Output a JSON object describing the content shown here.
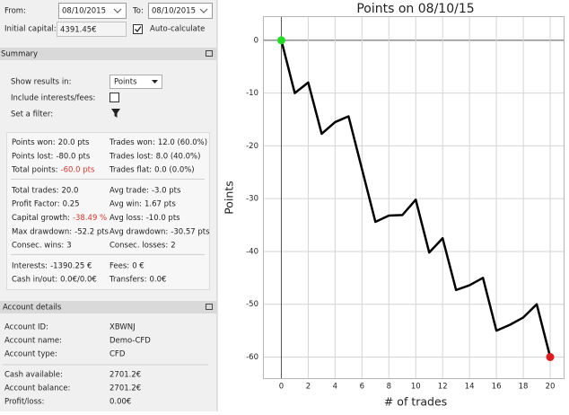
{
  "header": {
    "from_label": "From:",
    "from_date": "08/10/2015",
    "to_label": "To:",
    "to_date": "08/10/2015",
    "capital_label": "Initial capital:",
    "capital_value": "4391.45€",
    "auto_calculate": "Auto-calculate"
  },
  "summary": {
    "title": "Summary",
    "show_results_label": "Show results in:",
    "show_results_value": "Points",
    "include_fees_label": "Include interests/fees:",
    "filter_label": "Set a filter:",
    "groups": [
      [
        {
          "left": {
            "label": "Points won:",
            "value": "20.0 pts"
          },
          "right": {
            "label": "Trades won:",
            "value": "12.0 (60.0%)"
          }
        },
        {
          "left": {
            "label": "Points lost:",
            "value": "-80.0 pts"
          },
          "right": {
            "label": "Trades lost:",
            "value": "8.0 (40.0%)"
          }
        },
        {
          "left": {
            "label": "Total points:",
            "value": "-60.0 pts",
            "value_color": "#d9342b"
          },
          "right": {
            "label": "Trades flat:",
            "value": "0.0 (0.0%)"
          }
        }
      ],
      [
        {
          "left": {
            "label": "Total trades:",
            "value": "20.0"
          },
          "right": {
            "label": "Avg trade:",
            "value": "-3.0 pts"
          }
        },
        {
          "left": {
            "label": "Profit Factor:",
            "value": "0.25"
          },
          "right": {
            "label": "Avg win:",
            "value": "1.67 pts"
          }
        },
        {
          "left": {
            "label": "Capital growth:",
            "value": "-38.49 %",
            "value_color": "#d9342b"
          },
          "right": {
            "label": "Avg loss:",
            "value": "-10.0 pts"
          }
        },
        {
          "left": {
            "label": "Max drawdown:",
            "value": "-52.2 pts"
          },
          "right": {
            "label": "Avg drawdown:",
            "value": "-30.57 pts"
          }
        },
        {
          "left": {
            "label": "Consec. wins:",
            "value": "3"
          },
          "right": {
            "label": "Consec. losses:",
            "value": "2"
          }
        }
      ],
      [
        {
          "left": {
            "label": "Interests:",
            "value": "-1390.25 €"
          },
          "right": {
            "label": "Fees:",
            "value": "0 €"
          }
        },
        {
          "left": {
            "label": "Cash in/out:",
            "value": "0.0€/0.0€"
          },
          "right": {
            "label": "Transfers:",
            "value": "0.0€"
          }
        }
      ]
    ]
  },
  "account": {
    "title": "Account details",
    "groups": [
      [
        {
          "label": "Account ID:",
          "value": "XBWNJ"
        },
        {
          "label": "Account name:",
          "value": "Demo-CFD"
        },
        {
          "label": "Account type:",
          "value": "CFD"
        }
      ],
      [
        {
          "label": "Cash available:",
          "value": "2701.2€"
        },
        {
          "label": "Account balance:",
          "value": "2701.2€"
        },
        {
          "label": "Profit/loss:",
          "value": "0.00€"
        }
      ]
    ]
  },
  "chart_data": {
    "type": "line",
    "title": "Points on 08/10/15",
    "x_label": "# of trades",
    "y_label": "Points",
    "x": [
      0,
      1,
      2,
      3,
      4,
      5,
      6,
      7,
      8,
      9,
      10,
      11,
      12,
      13,
      14,
      15,
      16,
      17,
      18,
      19,
      20
    ],
    "values": [
      0,
      -10,
      -8,
      -17.7,
      -15.5,
      -14.4,
      -24.4,
      -34.4,
      -33.2,
      -33.1,
      -30.2,
      -40.2,
      -37.5,
      -47.3,
      -46.4,
      -45,
      -55,
      -53.9,
      -52.5,
      -50,
      -60
    ],
    "color": "#000000",
    "start_color": "#22dd22",
    "end_color": "#e31a1c",
    "xlim": [
      -1.3,
      21
    ],
    "ylim": [
      -64,
      4.4
    ],
    "xticks": [
      0,
      2,
      4,
      6,
      8,
      10,
      12,
      14,
      16,
      18,
      20
    ],
    "yticks": [
      0,
      -10,
      -20,
      -30,
      -40,
      -50,
      -60
    ],
    "grid": true
  }
}
